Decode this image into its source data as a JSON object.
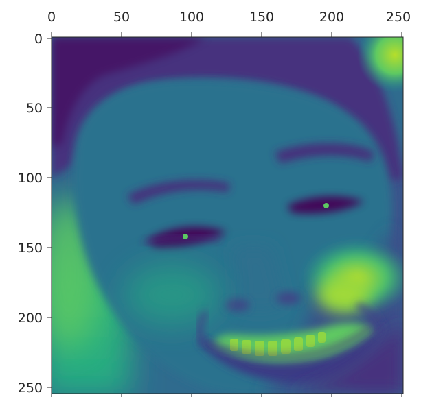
{
  "figure": {
    "type": "heatmap",
    "colormap": "viridis",
    "image_subject": "close-up grayscale portrait of a smiling young man rendered with the viridis colormap",
    "x_ticks": [
      "0",
      "50",
      "100",
      "150",
      "200",
      "250"
    ],
    "y_ticks": [
      "0",
      "50",
      "100",
      "150",
      "200",
      "250"
    ],
    "x_axis_position": "top",
    "x_range": [
      0,
      255
    ],
    "y_range": [
      0,
      255
    ],
    "grid": false,
    "colors": {
      "viridis_dark": "#440154",
      "viridis_purple": "#472f7d",
      "viridis_blue": "#3b528b",
      "viridis_teal": "#21918c",
      "viridis_green": "#5ec962",
      "viridis_yellow": "#c8e020",
      "axis_color": "#262626"
    }
  }
}
